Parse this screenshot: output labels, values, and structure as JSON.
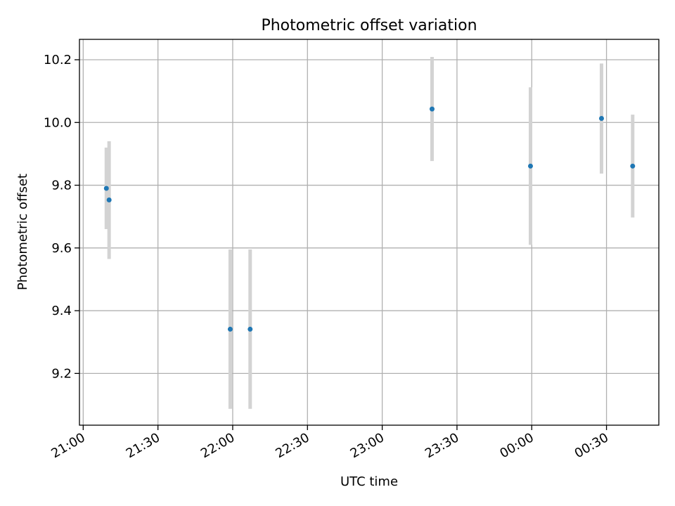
{
  "chart_data": {
    "type": "scatter",
    "title": "Photometric offset variation",
    "xlabel": "UTC time",
    "ylabel": "Photometric offset",
    "grid": true,
    "legend": "none",
    "x_tick_labels": [
      "21:00",
      "21:30",
      "22:00",
      "22:30",
      "23:00",
      "23:30",
      "00:00",
      "00:30"
    ],
    "x_tick_values_min": [
      0,
      30,
      60,
      90,
      120,
      150,
      180,
      210
    ],
    "xlim_min": [
      -1.5,
      231
    ],
    "y_ticks": [
      9.2,
      9.4,
      9.6,
      9.8,
      10.0,
      10.2
    ],
    "y_tick_labels": [
      "9.2",
      "9.4",
      "9.6",
      "9.8",
      "10.0",
      "10.2"
    ],
    "ylim": [
      9.035,
      10.265
    ],
    "marker_color": "#1f77b4",
    "errorbar_color": "#d3d3d3",
    "points": [
      {
        "time": "21:09",
        "t_min": 9.3,
        "y": 9.79,
        "yerr_low": 9.66,
        "yerr_high": 9.92
      },
      {
        "time": "21:10",
        "t_min": 10.4,
        "y": 9.753,
        "yerr_low": 9.565,
        "yerr_high": 9.94
      },
      {
        "time": "21:59",
        "t_min": 59.0,
        "y": 9.341,
        "yerr_low": 9.087,
        "yerr_high": 9.595
      },
      {
        "time": "22:07",
        "t_min": 67.0,
        "y": 9.341,
        "yerr_low": 9.087,
        "yerr_high": 9.595
      },
      {
        "time": "23:20",
        "t_min": 140.0,
        "y": 10.043,
        "yerr_low": 9.877,
        "yerr_high": 10.209
      },
      {
        "time": "23:59",
        "t_min": 179.5,
        "y": 9.861,
        "yerr_low": 9.61,
        "yerr_high": 10.112
      },
      {
        "time": "00:28",
        "t_min": 208.0,
        "y": 10.013,
        "yerr_low": 9.837,
        "yerr_high": 10.188
      },
      {
        "time": "00:40",
        "t_min": 220.5,
        "y": 9.861,
        "yerr_low": 9.697,
        "yerr_high": 10.025
      }
    ]
  }
}
